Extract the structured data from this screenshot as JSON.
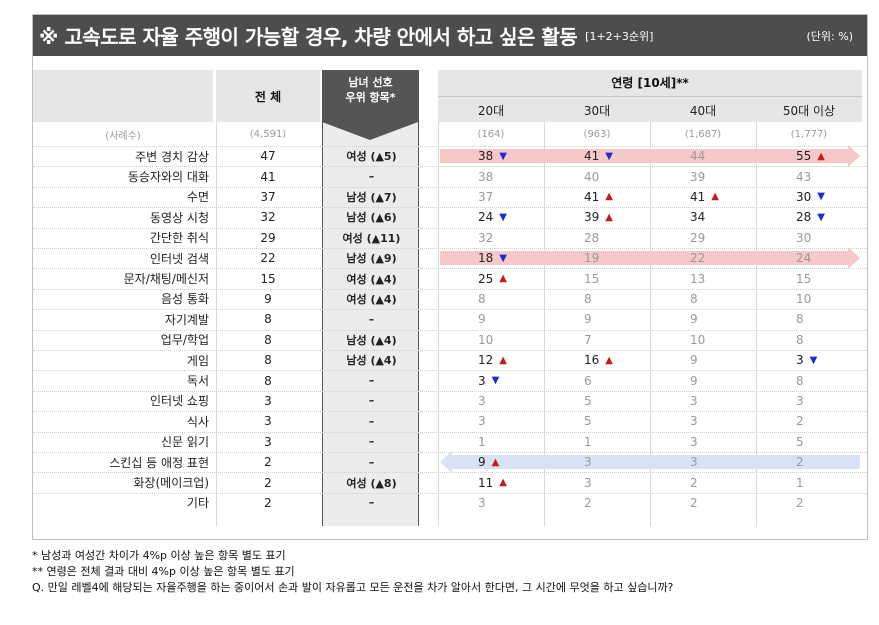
{
  "title": {
    "main": "※ 고속도로 자율 주행이 가능할 경우, 차량 안에서 하고 싶은 활동",
    "sub": "[1+2+3순위]",
    "unit": "(단위: %)"
  },
  "headers": {
    "total": "전 체",
    "pref_line1": "남녀 선호",
    "pref_line2": "우위 항목*",
    "age_group": "연령 [10세]**",
    "ages": [
      "20대",
      "30대",
      "40대",
      "50대 이상"
    ]
  },
  "sample": {
    "label": "(사례수)",
    "total": "(4,591)",
    "ages": [
      "(164)",
      "(963)",
      "(1,687)",
      "(1,777)"
    ]
  },
  "colors": {
    "up": "#c81a1a",
    "down": "#1b2bd6",
    "band_red": "#f6c8c8",
    "band_blue": "#d7e3f5"
  },
  "rows": [
    {
      "label": "주변 경치 감상",
      "total": "47",
      "pref": "여성 (▲5)",
      "ages": [
        {
          "v": "38",
          "m": "down"
        },
        {
          "v": "41",
          "m": "down"
        },
        {
          "v": "44",
          "m": "grey"
        },
        {
          "v": "55",
          "m": "up"
        }
      ]
    },
    {
      "label": "동승자와의 대화",
      "total": "41",
      "pref": "–",
      "ages": [
        {
          "v": "38",
          "m": "grey"
        },
        {
          "v": "40",
          "m": "grey"
        },
        {
          "v": "39",
          "m": "grey"
        },
        {
          "v": "43",
          "m": "grey"
        }
      ]
    },
    {
      "label": "수면",
      "total": "37",
      "pref": "남성 (▲7)",
      "ages": [
        {
          "v": "37",
          "m": "grey"
        },
        {
          "v": "41",
          "m": "up"
        },
        {
          "v": "41",
          "m": "up"
        },
        {
          "v": "30",
          "m": "down"
        }
      ]
    },
    {
      "label": "동영상 시청",
      "total": "32",
      "pref": "남성 (▲6)",
      "ages": [
        {
          "v": "24",
          "m": "down"
        },
        {
          "v": "39",
          "m": "up"
        },
        {
          "v": "34",
          "m": ""
        },
        {
          "v": "28",
          "m": "down"
        }
      ]
    },
    {
      "label": "간단한 취식",
      "total": "29",
      "pref": "여성 (▲11)",
      "ages": [
        {
          "v": "32",
          "m": "grey"
        },
        {
          "v": "28",
          "m": "grey"
        },
        {
          "v": "29",
          "m": "grey"
        },
        {
          "v": "30",
          "m": "grey"
        }
      ]
    },
    {
      "label": "인터넷 검색",
      "total": "22",
      "pref": "남성 (▲9)",
      "ages": [
        {
          "v": "18",
          "m": "down"
        },
        {
          "v": "19",
          "m": "grey"
        },
        {
          "v": "22",
          "m": "grey"
        },
        {
          "v": "24",
          "m": "grey"
        }
      ]
    },
    {
      "label": "문자/채팅/메신저",
      "total": "15",
      "pref": "여성 (▲4)",
      "ages": [
        {
          "v": "25",
          "m": "up"
        },
        {
          "v": "15",
          "m": "grey"
        },
        {
          "v": "13",
          "m": "grey"
        },
        {
          "v": "15",
          "m": "grey"
        }
      ]
    },
    {
      "label": "음성 통화",
      "total": "9",
      "pref": "여성 (▲4)",
      "ages": [
        {
          "v": "8",
          "m": "grey"
        },
        {
          "v": "8",
          "m": "grey"
        },
        {
          "v": "8",
          "m": "grey"
        },
        {
          "v": "10",
          "m": "grey"
        }
      ]
    },
    {
      "label": "자기계발",
      "total": "8",
      "pref": "–",
      "ages": [
        {
          "v": "9",
          "m": "grey"
        },
        {
          "v": "9",
          "m": "grey"
        },
        {
          "v": "9",
          "m": "grey"
        },
        {
          "v": "8",
          "m": "grey"
        }
      ]
    },
    {
      "label": "업무/학업",
      "total": "8",
      "pref": "남성 (▲4)",
      "ages": [
        {
          "v": "10",
          "m": "grey"
        },
        {
          "v": "7",
          "m": "grey"
        },
        {
          "v": "10",
          "m": "grey"
        },
        {
          "v": "8",
          "m": "grey"
        }
      ]
    },
    {
      "label": "게임",
      "total": "8",
      "pref": "남성 (▲4)",
      "ages": [
        {
          "v": "12",
          "m": "up"
        },
        {
          "v": "16",
          "m": "up"
        },
        {
          "v": "9",
          "m": "grey"
        },
        {
          "v": "3",
          "m": "down"
        }
      ]
    },
    {
      "label": "독서",
      "total": "8",
      "pref": "–",
      "ages": [
        {
          "v": "3",
          "m": "down"
        },
        {
          "v": "6",
          "m": "grey"
        },
        {
          "v": "9",
          "m": "grey"
        },
        {
          "v": "8",
          "m": "grey"
        }
      ]
    },
    {
      "label": "인터넷 쇼핑",
      "total": "3",
      "pref": "–",
      "ages": [
        {
          "v": "3",
          "m": "grey"
        },
        {
          "v": "5",
          "m": "grey"
        },
        {
          "v": "3",
          "m": "grey"
        },
        {
          "v": "3",
          "m": "grey"
        }
      ]
    },
    {
      "label": "식사",
      "total": "3",
      "pref": "–",
      "ages": [
        {
          "v": "3",
          "m": "grey"
        },
        {
          "v": "5",
          "m": "grey"
        },
        {
          "v": "3",
          "m": "grey"
        },
        {
          "v": "2",
          "m": "grey"
        }
      ]
    },
    {
      "label": "신문 읽기",
      "total": "3",
      "pref": "–",
      "ages": [
        {
          "v": "1",
          "m": "grey"
        },
        {
          "v": "1",
          "m": "grey"
        },
        {
          "v": "3",
          "m": "grey"
        },
        {
          "v": "5",
          "m": "grey"
        }
      ]
    },
    {
      "label": "스킨십 등 애정 표현",
      "total": "2",
      "pref": "–",
      "ages": [
        {
          "v": "9",
          "m": "up"
        },
        {
          "v": "3",
          "m": "grey"
        },
        {
          "v": "3",
          "m": "grey"
        },
        {
          "v": "2",
          "m": "grey"
        }
      ]
    },
    {
      "label": "화장(메이크업)",
      "total": "2",
      "pref": "여성 (▲8)",
      "ages": [
        {
          "v": "11",
          "m": "up"
        },
        {
          "v": "3",
          "m": "grey"
        },
        {
          "v": "2",
          "m": "grey"
        },
        {
          "v": "1",
          "m": "grey"
        }
      ]
    },
    {
      "label": "기타",
      "total": "2",
      "pref": "–",
      "ages": [
        {
          "v": "3",
          "m": "grey"
        },
        {
          "v": "2",
          "m": "grey"
        },
        {
          "v": "2",
          "m": "grey"
        },
        {
          "v": "2",
          "m": "grey"
        }
      ]
    }
  ],
  "highlights": [
    {
      "row": 0,
      "kind": "red"
    },
    {
      "row": 5,
      "kind": "red"
    },
    {
      "row": 15,
      "kind": "blue"
    }
  ],
  "notes": [
    "* 남성과 여성간 차이가 4%p 이상 높은 항목 별도 표기",
    "** 연령은 전체 결과 대비 4%p 이상 높은 항목 별도 표기",
    "Q. 만일 레벨4에 해당되는 자율주행을 하는 중이어서 손과 발이 자유롭고 모든 운전을 차가 알아서 한다면, 그 시간에 무엇을 하고 싶습니까?"
  ]
}
